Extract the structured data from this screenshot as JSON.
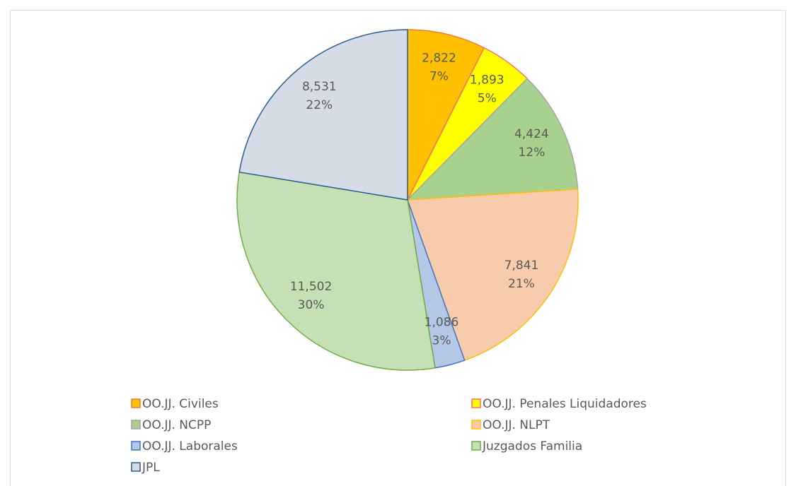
{
  "chart_data": {
    "type": "pie",
    "categories": [
      "OO.JJ. Civiles",
      "OO.JJ. Penales Liquidadores",
      "OO.JJ. NCPP",
      "OO.JJ. NLPT",
      "OO.JJ. Laborales",
      "Juzgados Familia",
      "JPL"
    ],
    "values": [
      2822,
      1893,
      4424,
      7841,
      1086,
      11502,
      8531
    ],
    "value_labels": [
      "2,822",
      "1,893",
      "4,424",
      "7,841",
      "1,086",
      "11,502",
      "8,531"
    ],
    "percent_labels": [
      "7%",
      "5%",
      "12%",
      "21%",
      "3%",
      "30%",
      "22%"
    ],
    "colors": [
      "#ffc000",
      "#ffff00",
      "#a9d18e",
      "#f8cbad",
      "#b4c7e7",
      "#c5e0b4",
      "#d6dce5"
    ],
    "edge_colors": [
      "#ed7d31",
      "#ff6d6d",
      "#a5a5a5",
      "#ffc000",
      "#4472c4",
      "#70ad47",
      "#255e91"
    ],
    "legend": "bottom"
  }
}
